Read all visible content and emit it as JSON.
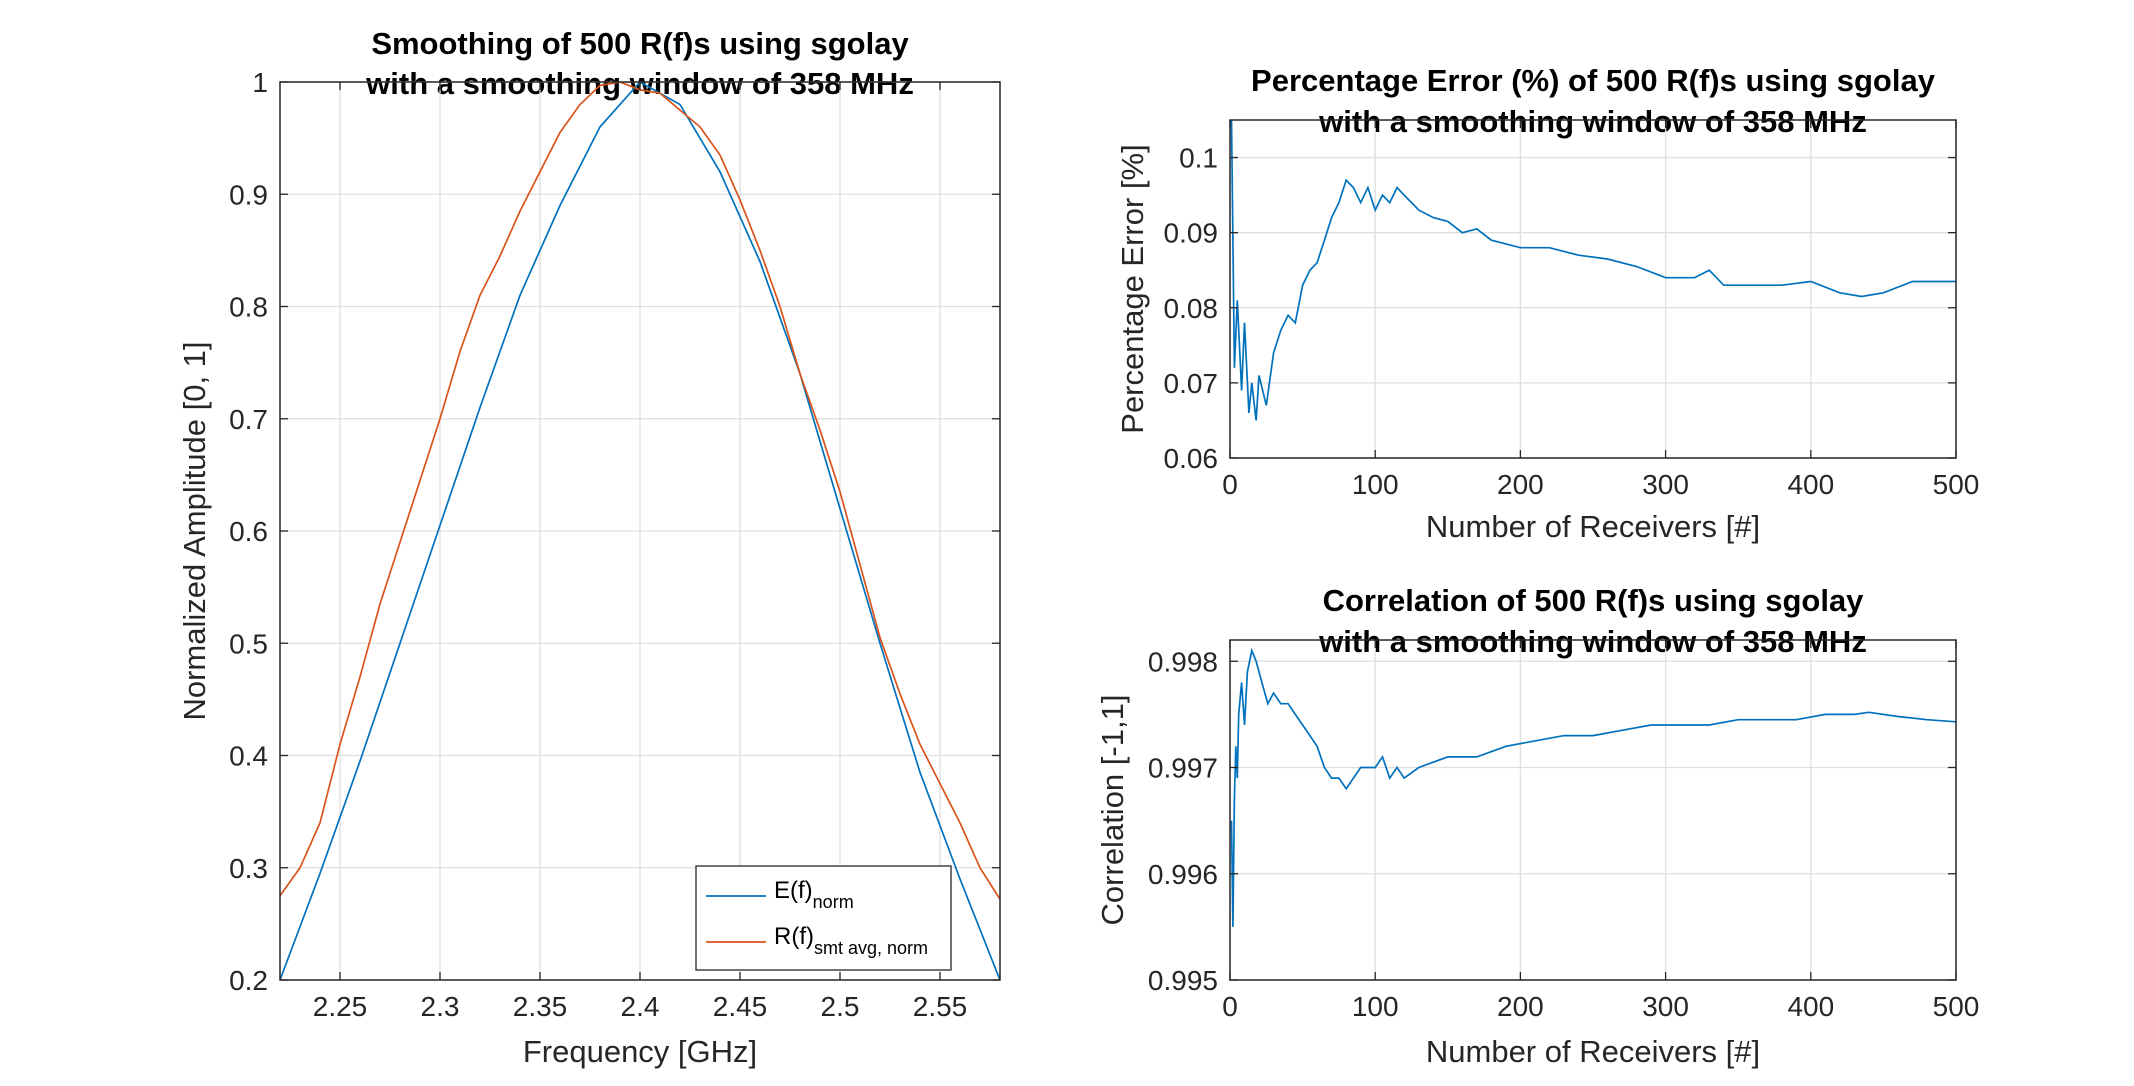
{
  "chart_data": [
    {
      "type": "line",
      "title": [
        "Smoothing of 500 R(f)s using sgolay",
        "with a smoothing window of 358 MHz"
      ],
      "xlabel": "Frequency [GHz]",
      "ylabel": "Normalized Amplitude [0, 1]",
      "xlim": [
        2.22,
        2.58
      ],
      "ylim": [
        0.2,
        1.0
      ],
      "xticks": [
        2.25,
        2.3,
        2.35,
        2.4,
        2.45,
        2.5,
        2.55
      ],
      "xtick_labels": [
        "2.25",
        "2.3",
        "2.35",
        "2.4",
        "2.45",
        "2.5",
        "2.55"
      ],
      "yticks": [
        0.2,
        0.3,
        0.4,
        0.5,
        0.6,
        0.7,
        0.8,
        0.9,
        1.0
      ],
      "ytick_labels": [
        "0.2",
        "0.3",
        "0.4",
        "0.5",
        "0.6",
        "0.7",
        "0.8",
        "0.9",
        "1"
      ],
      "grid": true,
      "legend_position": "bottom-right",
      "series": [
        {
          "label_main": "E(f)",
          "label_sub": "norm",
          "color": "#0072BD",
          "x": [
            2.22,
            2.24,
            2.26,
            2.28,
            2.3,
            2.32,
            2.34,
            2.36,
            2.38,
            2.4,
            2.42,
            2.44,
            2.46,
            2.48,
            2.5,
            2.52,
            2.54,
            2.56,
            2.58
          ],
          "y": [
            0.2,
            0.295,
            0.395,
            0.5,
            0.605,
            0.71,
            0.81,
            0.89,
            0.96,
            1.0,
            0.98,
            0.92,
            0.84,
            0.74,
            0.62,
            0.5,
            0.385,
            0.29,
            0.2
          ]
        },
        {
          "label_main": "R(f)",
          "label_sub": "smt avg, norm",
          "color": "#D95319",
          "x": [
            2.22,
            2.23,
            2.24,
            2.25,
            2.26,
            2.27,
            2.28,
            2.29,
            2.3,
            2.31,
            2.32,
            2.33,
            2.34,
            2.35,
            2.36,
            2.37,
            2.38,
            2.39,
            2.4,
            2.41,
            2.42,
            2.43,
            2.44,
            2.45,
            2.46,
            2.47,
            2.48,
            2.49,
            2.5,
            2.51,
            2.52,
            2.53,
            2.54,
            2.55,
            2.56,
            2.57,
            2.58
          ],
          "y": [
            0.275,
            0.3,
            0.34,
            0.41,
            0.47,
            0.535,
            0.59,
            0.645,
            0.7,
            0.76,
            0.81,
            0.845,
            0.885,
            0.92,
            0.955,
            0.98,
            0.997,
            1.0,
            0.993,
            0.99,
            0.975,
            0.96,
            0.935,
            0.895,
            0.85,
            0.8,
            0.74,
            0.69,
            0.635,
            0.57,
            0.505,
            0.455,
            0.41,
            0.375,
            0.34,
            0.3,
            0.272
          ]
        }
      ]
    },
    {
      "type": "line",
      "title": [
        "Percentage Error (%) of 500 R(f)s using sgolay",
        "with a smoothing window of 358 MHz"
      ],
      "xlabel": "Number of Receivers [#]",
      "ylabel": "Percentage Error [%]",
      "xlim": [
        0,
        500
      ],
      "ylim": [
        0.06,
        0.105
      ],
      "xticks": [
        0,
        100,
        200,
        300,
        400,
        500
      ],
      "xtick_labels": [
        "0",
        "100",
        "200",
        "300",
        "400",
        "500"
      ],
      "yticks": [
        0.06,
        0.07,
        0.08,
        0.09,
        0.1
      ],
      "ytick_labels": [
        "0.06",
        "0.07",
        "0.08",
        "0.09",
        "0.1"
      ],
      "grid": true,
      "series": [
        {
          "color": "#0072BD",
          "x": [
            1,
            3,
            5,
            8,
            10,
            13,
            15,
            18,
            20,
            25,
            30,
            35,
            40,
            45,
            50,
            55,
            60,
            65,
            70,
            75,
            80,
            85,
            90,
            95,
            100,
            105,
            110,
            115,
            120,
            130,
            140,
            150,
            160,
            170,
            180,
            190,
            200,
            220,
            240,
            260,
            280,
            300,
            320,
            330,
            340,
            360,
            380,
            400,
            420,
            435,
            450,
            470,
            490,
            500
          ],
          "y": [
            0.105,
            0.072,
            0.081,
            0.069,
            0.078,
            0.066,
            0.07,
            0.065,
            0.071,
            0.067,
            0.074,
            0.077,
            0.079,
            0.078,
            0.083,
            0.085,
            0.086,
            0.089,
            0.092,
            0.094,
            0.097,
            0.096,
            0.094,
            0.096,
            0.093,
            0.095,
            0.094,
            0.096,
            0.095,
            0.093,
            0.092,
            0.0915,
            0.09,
            0.0905,
            0.089,
            0.0885,
            0.088,
            0.088,
            0.087,
            0.0865,
            0.0855,
            0.084,
            0.084,
            0.085,
            0.083,
            0.083,
            0.083,
            0.0835,
            0.082,
            0.0815,
            0.082,
            0.0835,
            0.0835,
            0.0835
          ]
        }
      ]
    },
    {
      "type": "line",
      "title": [
        "Correlation of 500 R(f)s using sgolay",
        "with a smoothing window of 358 MHz"
      ],
      "xlabel": "Number of Receivers [#]",
      "ylabel": "Correlation [-1,1]",
      "xlim": [
        0,
        500
      ],
      "ylim": [
        0.995,
        0.9982
      ],
      "xticks": [
        0,
        100,
        200,
        300,
        400,
        500
      ],
      "xtick_labels": [
        "0",
        "100",
        "200",
        "300",
        "400",
        "500"
      ],
      "yticks": [
        0.995,
        0.996,
        0.997,
        0.998
      ],
      "ytick_labels": [
        "0.995",
        "0.996",
        "0.997",
        "0.998"
      ],
      "grid": true,
      "series": [
        {
          "color": "#0072BD",
          "x": [
            1,
            2,
            3,
            4,
            5,
            6,
            8,
            10,
            12,
            15,
            18,
            22,
            26,
            30,
            35,
            40,
            45,
            50,
            55,
            60,
            65,
            70,
            75,
            80,
            85,
            90,
            95,
            100,
            105,
            110,
            115,
            120,
            130,
            140,
            150,
            170,
            190,
            210,
            230,
            250,
            270,
            290,
            310,
            330,
            350,
            370,
            390,
            410,
            430,
            440,
            460,
            480,
            500
          ],
          "y": [
            0.9965,
            0.9955,
            0.9967,
            0.9972,
            0.9969,
            0.9975,
            0.9978,
            0.9974,
            0.9979,
            0.9981,
            0.998,
            0.9978,
            0.9976,
            0.9977,
            0.9976,
            0.9976,
            0.9975,
            0.9974,
            0.9973,
            0.9972,
            0.997,
            0.9969,
            0.9969,
            0.9968,
            0.9969,
            0.997,
            0.997,
            0.997,
            0.9971,
            0.9969,
            0.997,
            0.9969,
            0.997,
            0.99705,
            0.9971,
            0.9971,
            0.9972,
            0.99725,
            0.9973,
            0.9973,
            0.99735,
            0.9974,
            0.9974,
            0.9974,
            0.99745,
            0.99745,
            0.99745,
            0.9975,
            0.9975,
            0.99752,
            0.99748,
            0.99745,
            0.99743
          ]
        }
      ]
    }
  ]
}
